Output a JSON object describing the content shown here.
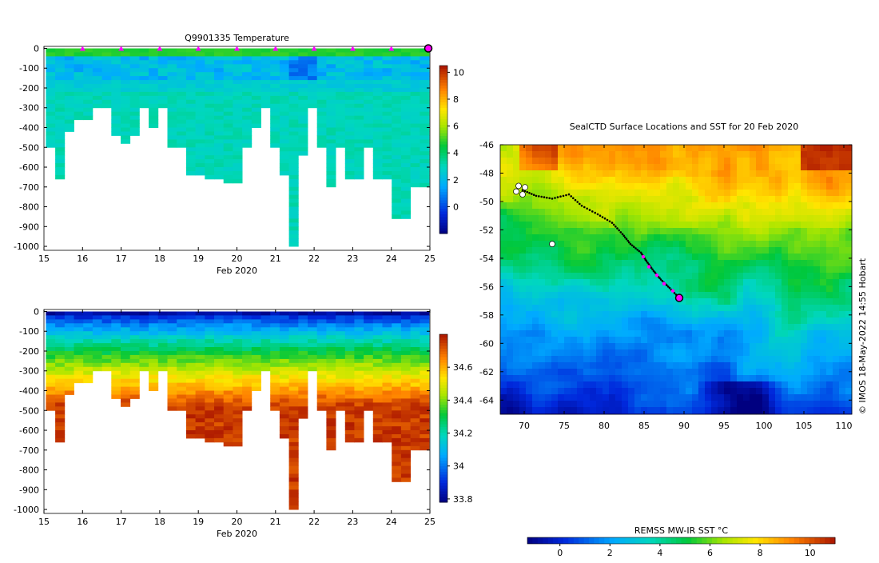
{
  "chart_data": [
    {
      "type": "heatmap",
      "title": "Q9901335  Temperature",
      "xlabel": "Feb 2020",
      "ylabel": "",
      "x_ticks": [
        15,
        16,
        17,
        18,
        19,
        20,
        21,
        22,
        23,
        24,
        25
      ],
      "y_ticks": [
        0,
        -100,
        -200,
        -300,
        -400,
        -500,
        -600,
        -700,
        -800,
        -900,
        -1000
      ],
      "xlim": [
        15,
        25
      ],
      "ylim": [
        -1020,
        10
      ],
      "colorbar": {
        "min": -2,
        "max": 10.5,
        "ticks": [
          0,
          2,
          4,
          6,
          8,
          10
        ]
      },
      "profile_depths": [
        500,
        660,
        420,
        350,
        350,
        300,
        300,
        430,
        470,
        440,
        300,
        390,
        300,
        500,
        500,
        640,
        640,
        660,
        660,
        680,
        680,
        500,
        400,
        300,
        500,
        640,
        1000,
        530,
        300,
        500,
        700,
        500,
        650,
        650,
        500,
        660,
        660,
        860,
        860,
        690,
        690
      ],
      "dive_markers_x": [
        16,
        17,
        18,
        19,
        20,
        21,
        22,
        23,
        24
      ],
      "current_position_x": 25
    },
    {
      "type": "heatmap",
      "title": "",
      "xlabel": "Feb 2020",
      "ylabel": "",
      "x_ticks": [
        15,
        16,
        17,
        18,
        19,
        20,
        21,
        22,
        23,
        24,
        25
      ],
      "y_ticks": [
        0,
        -100,
        -200,
        -300,
        -400,
        -500,
        -600,
        -700,
        -800,
        -900,
        -1000
      ],
      "xlim": [
        15,
        25
      ],
      "ylim": [
        -1020,
        10
      ],
      "colorbar": {
        "min": 33.78,
        "max": 34.8,
        "ticks": [
          33.8,
          34,
          34.2,
          34.4,
          34.6
        ]
      },
      "profile_depths": [
        500,
        660,
        420,
        350,
        350,
        300,
        300,
        430,
        470,
        440,
        300,
        390,
        300,
        500,
        500,
        640,
        640,
        660,
        660,
        680,
        680,
        500,
        400,
        300,
        500,
        640,
        1000,
        530,
        300,
        500,
        700,
        500,
        650,
        650,
        500,
        660,
        660,
        860,
        860,
        690,
        690
      ]
    },
    {
      "type": "heatmap",
      "title": "SealCTD Surface Locations and SST for 20 Feb 2020",
      "xlabel": "",
      "ylabel": "",
      "x_ticks": [
        70,
        75,
        80,
        85,
        90,
        95,
        100,
        105,
        110
      ],
      "y_ticks": [
        -46,
        -48,
        -50,
        -52,
        -54,
        -56,
        -58,
        -60,
        -62,
        -64
      ],
      "xlim": [
        67,
        111
      ],
      "ylim": [
        -65,
        -46
      ],
      "track": [
        [
          69.8,
          -49.2
        ],
        [
          71.5,
          -49.6
        ],
        [
          73.5,
          -49.8
        ],
        [
          75.6,
          -49.5
        ],
        [
          77.2,
          -50.3
        ],
        [
          79.2,
          -50.9
        ],
        [
          81,
          -51.5
        ],
        [
          82.3,
          -52.3
        ],
        [
          83.3,
          -53
        ],
        [
          84.6,
          -53.6
        ],
        [
          85.3,
          -54.2
        ],
        [
          86.2,
          -54.9
        ],
        [
          87.1,
          -55.5
        ],
        [
          88.2,
          -56.1
        ],
        [
          89.4,
          -56.8
        ]
      ],
      "magenta_points": [
        [
          84.9,
          -53.9
        ],
        [
          85.6,
          -54.6
        ],
        [
          86.6,
          -55.2
        ],
        [
          87.5,
          -55.8
        ],
        [
          88.6,
          -56.3
        ]
      ],
      "current_position": [
        89.4,
        -56.8
      ],
      "colorbar": {
        "label": "REMSS MW-IR SST °C",
        "min": -1.3,
        "max": 11,
        "ticks": [
          0,
          2,
          4,
          6,
          8,
          10
        ]
      },
      "watermark": "© IMOS 18-May-2022 14:55 Hobart"
    }
  ]
}
